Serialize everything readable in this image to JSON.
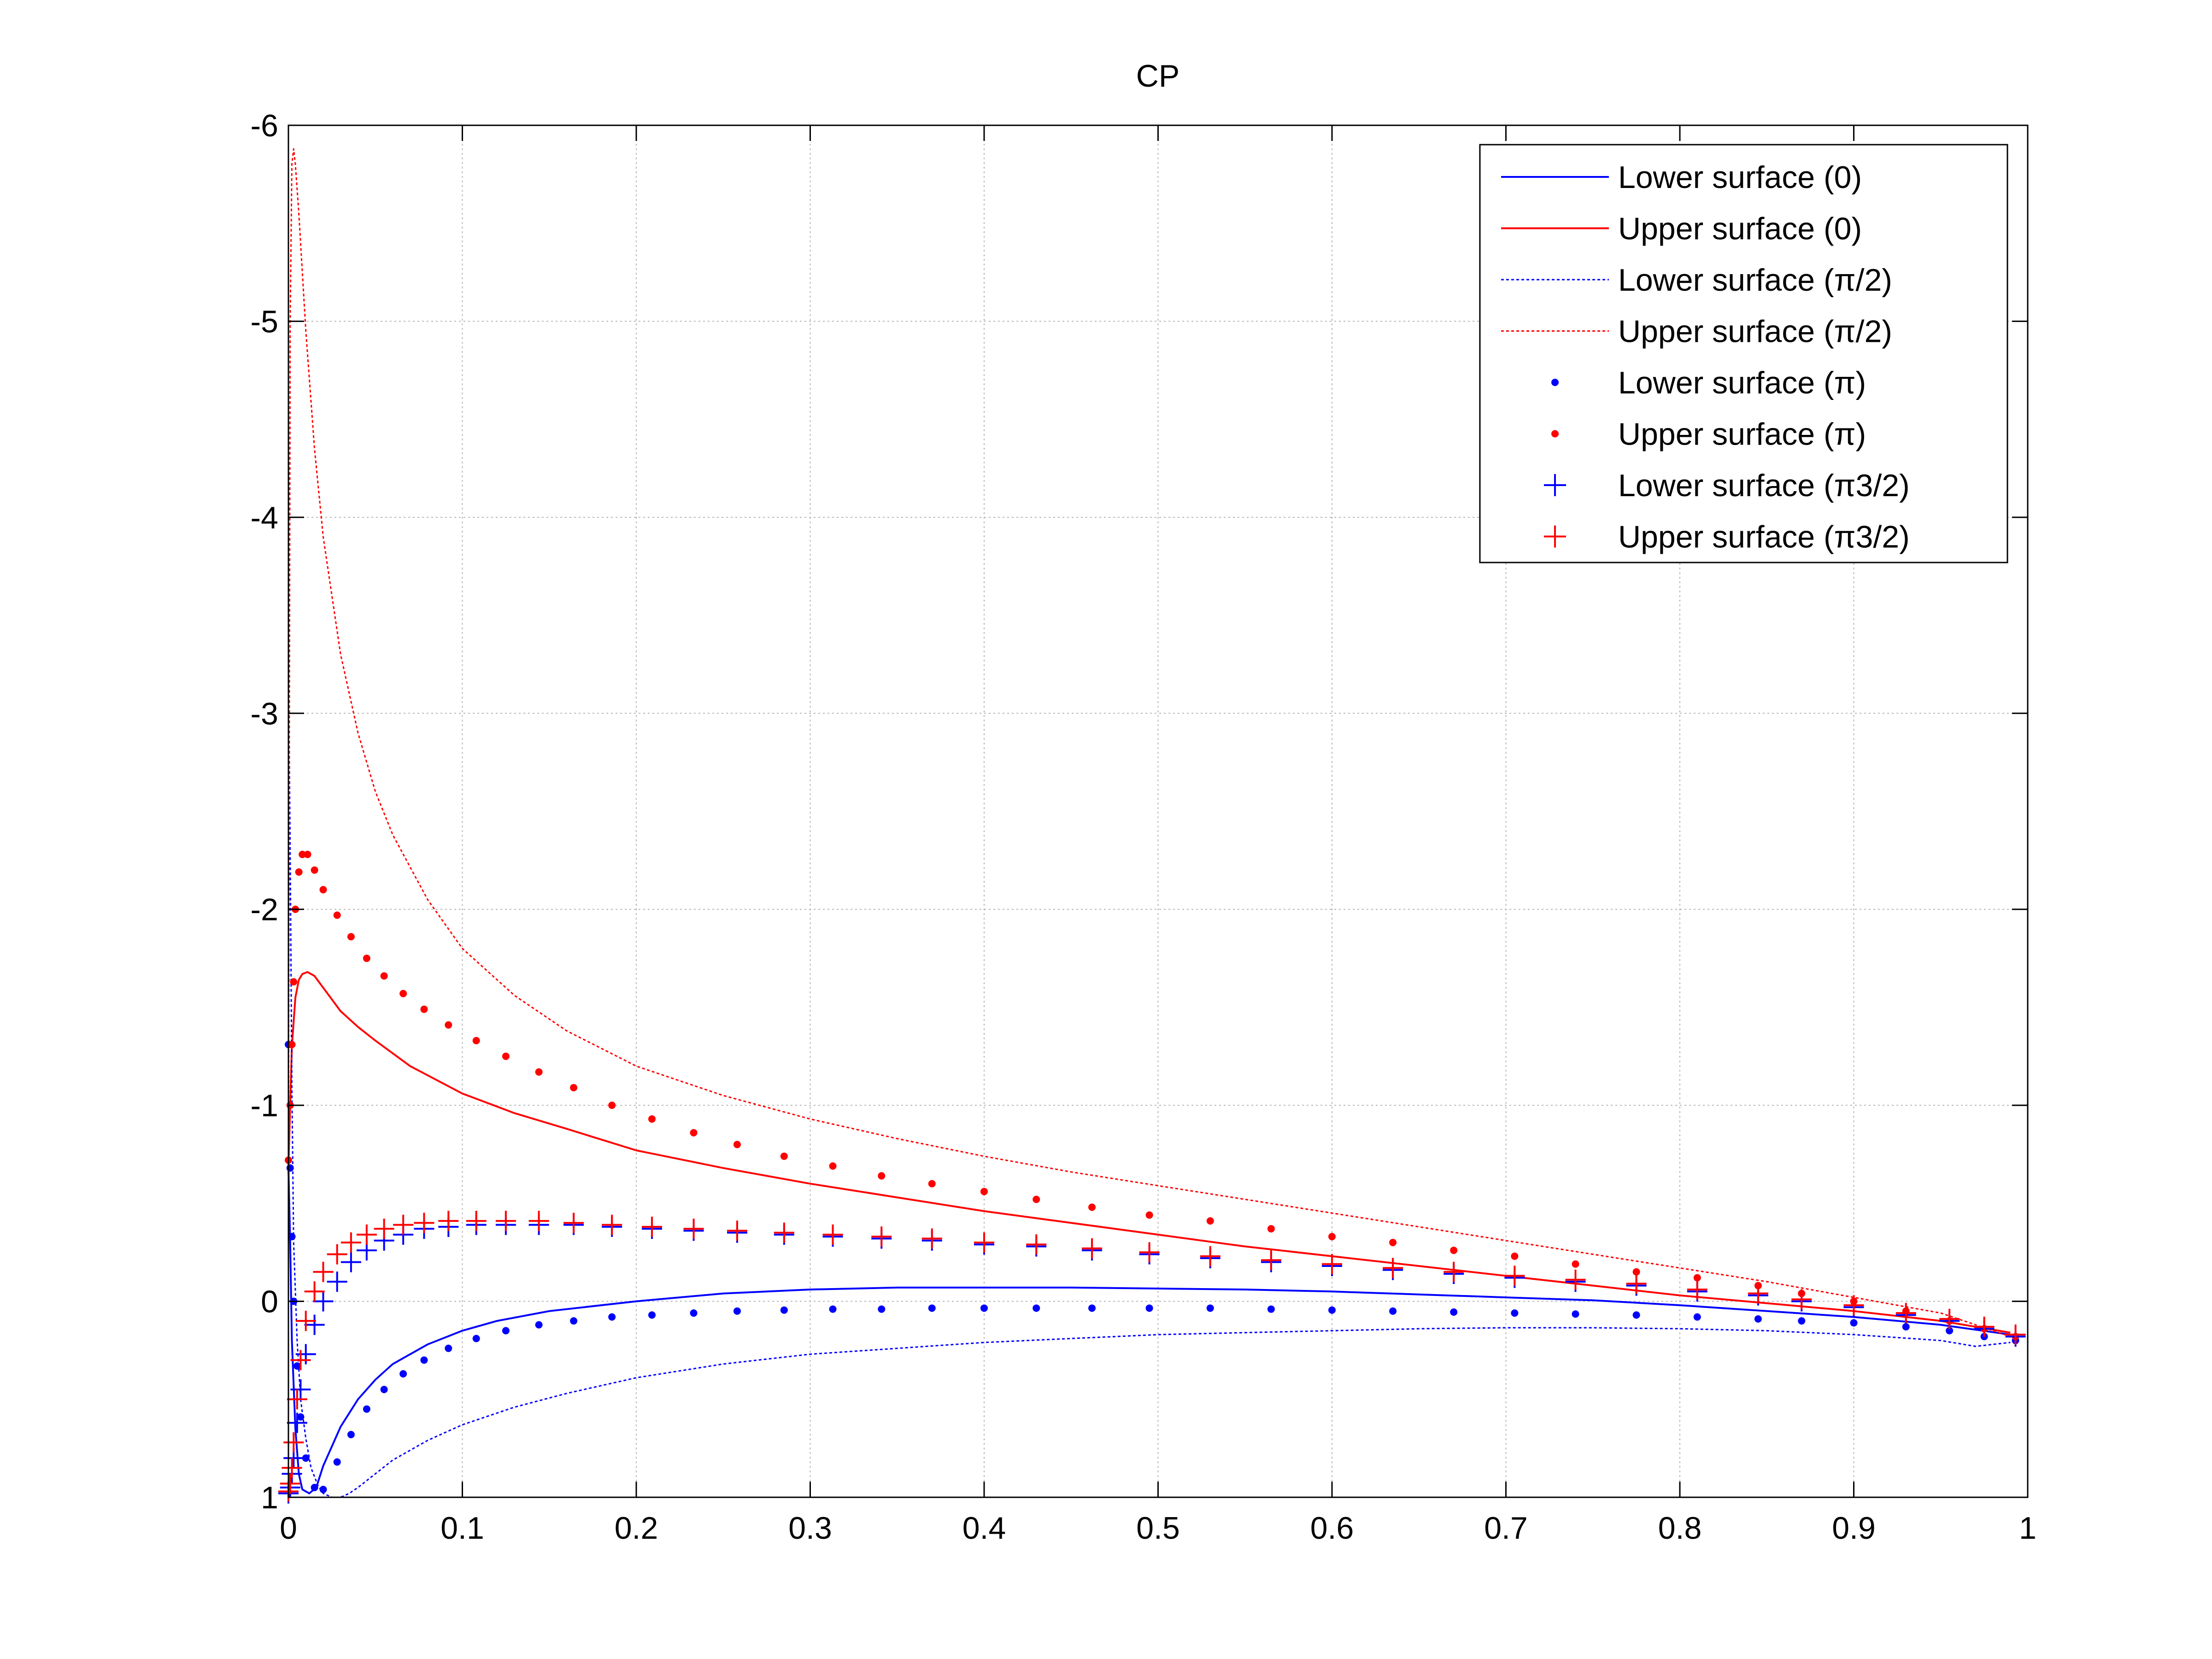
{
  "chart_data": {
    "type": "line",
    "title": "CP",
    "xlabel": "",
    "ylabel": "",
    "xlim": [
      0,
      1
    ],
    "ylim": [
      1,
      -6
    ],
    "y_reversed": true,
    "grid": true,
    "legend_position": "top-right",
    "xticks": [
      0,
      0.1,
      0.2,
      0.3,
      0.4,
      0.5,
      0.6,
      0.7,
      0.8,
      0.9,
      1
    ],
    "xtick_labels": [
      "0",
      "0.1",
      "0.2",
      "0.3",
      "0.4",
      "0.5",
      "0.6",
      "0.7",
      "0.8",
      "0.9",
      "1"
    ],
    "yticks": [
      1,
      0,
      -1,
      -2,
      -3,
      -4,
      -5,
      -6
    ],
    "ytick_labels": [
      "1",
      "0",
      "-1",
      "-2",
      "-3",
      "-4",
      "-5",
      "-6"
    ],
    "series": [
      {
        "name": "Lower surface (0)",
        "color": "#0000ff",
        "style": "solid",
        "marker": "none",
        "x": [
          0,
          0.001,
          0.002,
          0.004,
          0.006,
          0.008,
          0.012,
          0.016,
          0.02,
          0.03,
          0.04,
          0.05,
          0.06,
          0.08,
          0.1,
          0.12,
          0.15,
          0.2,
          0.25,
          0.3,
          0.35,
          0.4,
          0.45,
          0.5,
          0.55,
          0.6,
          0.65,
          0.7,
          0.75,
          0.8,
          0.85,
          0.9,
          0.95,
          0.99
        ],
        "y": [
          -0.68,
          -0.3,
          0.2,
          0.65,
          0.88,
          0.96,
          0.98,
          0.95,
          0.84,
          0.64,
          0.5,
          0.4,
          0.32,
          0.22,
          0.15,
          0.1,
          0.05,
          0.0,
          -0.04,
          -0.06,
          -0.07,
          -0.07,
          -0.07,
          -0.065,
          -0.06,
          -0.05,
          -0.035,
          -0.02,
          -0.005,
          0.02,
          0.05,
          0.08,
          0.12,
          0.17
        ]
      },
      {
        "name": "Upper surface (0)",
        "color": "#ff0000",
        "style": "solid",
        "marker": "none",
        "x": [
          0,
          0.001,
          0.002,
          0.004,
          0.006,
          0.008,
          0.011,
          0.015,
          0.02,
          0.03,
          0.04,
          0.05,
          0.07,
          0.1,
          0.13,
          0.16,
          0.2,
          0.25,
          0.3,
          0.35,
          0.4,
          0.45,
          0.5,
          0.55,
          0.6,
          0.65,
          0.7,
          0.75,
          0.8,
          0.85,
          0.9,
          0.95,
          0.99
        ],
        "y": [
          -0.68,
          -1.0,
          -1.3,
          -1.55,
          -1.64,
          -1.67,
          -1.68,
          -1.66,
          -1.6,
          -1.48,
          -1.4,
          -1.33,
          -1.2,
          -1.06,
          -0.96,
          -0.88,
          -0.77,
          -0.68,
          -0.6,
          -0.53,
          -0.46,
          -0.4,
          -0.34,
          -0.28,
          -0.23,
          -0.18,
          -0.13,
          -0.08,
          -0.03,
          0.01,
          0.05,
          0.1,
          0.16
        ]
      },
      {
        "name": "Lower surface (π/2)",
        "color": "#0000ff",
        "style": "dotted",
        "marker": "none",
        "x": [
          0,
          0.001,
          0.002,
          0.003,
          0.005,
          0.007,
          0.01,
          0.013,
          0.017,
          0.02,
          0.025,
          0.03,
          0.035,
          0.04,
          0.05,
          0.06,
          0.08,
          0.1,
          0.13,
          0.16,
          0.2,
          0.25,
          0.3,
          0.35,
          0.4,
          0.45,
          0.5,
          0.55,
          0.6,
          0.65,
          0.7,
          0.75,
          0.8,
          0.85,
          0.9,
          0.95,
          0.97,
          0.99
        ],
        "y": [
          -3.3,
          -2.3,
          -1.1,
          -0.3,
          0.2,
          0.5,
          0.7,
          0.85,
          0.94,
          0.98,
          1.0,
          1.0,
          0.98,
          0.95,
          0.88,
          0.81,
          0.71,
          0.63,
          0.54,
          0.47,
          0.39,
          0.32,
          0.27,
          0.24,
          0.21,
          0.19,
          0.17,
          0.16,
          0.15,
          0.14,
          0.135,
          0.135,
          0.14,
          0.15,
          0.17,
          0.2,
          0.23,
          0.21
        ]
      },
      {
        "name": "Upper surface (π/2)",
        "color": "#ff0000",
        "style": "dotted",
        "marker": "none",
        "x": [
          0,
          0.001,
          0.002,
          0.003,
          0.004,
          0.006,
          0.008,
          0.01,
          0.015,
          0.02,
          0.03,
          0.04,
          0.05,
          0.06,
          0.08,
          0.1,
          0.13,
          0.16,
          0.2,
          0.25,
          0.3,
          0.35,
          0.4,
          0.45,
          0.5,
          0.55,
          0.6,
          0.65,
          0.7,
          0.75,
          0.8,
          0.85,
          0.9,
          0.95,
          0.97,
          0.99
        ],
        "y": [
          -0.7,
          -5.0,
          -5.8,
          -5.88,
          -5.8,
          -5.55,
          -5.25,
          -4.95,
          -4.35,
          -3.9,
          -3.3,
          -2.9,
          -2.6,
          -2.38,
          -2.05,
          -1.8,
          -1.56,
          -1.38,
          -1.2,
          -1.05,
          -0.93,
          -0.83,
          -0.74,
          -0.66,
          -0.59,
          -0.52,
          -0.45,
          -0.38,
          -0.31,
          -0.24,
          -0.17,
          -0.1,
          -0.02,
          0.06,
          0.12,
          0.18
        ]
      },
      {
        "name": "Lower surface (π)",
        "color": "#0000ff",
        "style": "none",
        "marker": "dot",
        "x": [
          0,
          0.001,
          0.002,
          0.003,
          0.005,
          0.007,
          0.01,
          0.015,
          0.02,
          0.028,
          0.036,
          0.045,
          0.055,
          0.066,
          0.078,
          0.092,
          0.108,
          0.125,
          0.144,
          0.164,
          0.186,
          0.209,
          0.233,
          0.258,
          0.285,
          0.313,
          0.341,
          0.37,
          0.4,
          0.43,
          0.462,
          0.495,
          0.53,
          0.565,
          0.6,
          0.635,
          0.67,
          0.705,
          0.74,
          0.775,
          0.81,
          0.845,
          0.87,
          0.9,
          0.93,
          0.955,
          0.975,
          0.993
        ],
        "y": [
          -1.31,
          -0.68,
          -0.33,
          0.0,
          0.33,
          0.59,
          0.8,
          0.95,
          0.96,
          0.82,
          0.68,
          0.55,
          0.45,
          0.37,
          0.3,
          0.24,
          0.19,
          0.15,
          0.12,
          0.1,
          0.08,
          0.07,
          0.06,
          0.05,
          0.045,
          0.04,
          0.04,
          0.035,
          0.035,
          0.035,
          0.035,
          0.035,
          0.035,
          0.04,
          0.045,
          0.05,
          0.055,
          0.06,
          0.065,
          0.07,
          0.08,
          0.09,
          0.1,
          0.11,
          0.13,
          0.15,
          0.18,
          0.2
        ]
      },
      {
        "name": "Upper surface (π)",
        "color": "#ff0000",
        "style": "none",
        "marker": "dot",
        "x": [
          0,
          0.001,
          0.002,
          0.003,
          0.004,
          0.006,
          0.008,
          0.011,
          0.015,
          0.02,
          0.028,
          0.036,
          0.045,
          0.055,
          0.066,
          0.078,
          0.092,
          0.108,
          0.125,
          0.144,
          0.164,
          0.186,
          0.209,
          0.233,
          0.258,
          0.285,
          0.313,
          0.341,
          0.37,
          0.4,
          0.43,
          0.462,
          0.495,
          0.53,
          0.565,
          0.6,
          0.635,
          0.67,
          0.705,
          0.74,
          0.775,
          0.81,
          0.845,
          0.87,
          0.9,
          0.93,
          0.955,
          0.975,
          0.993
        ],
        "y": [
          -0.72,
          -1.0,
          -1.31,
          -1.63,
          -2.0,
          -2.19,
          -2.28,
          -2.28,
          -2.2,
          -2.1,
          -1.97,
          -1.86,
          -1.75,
          -1.66,
          -1.57,
          -1.49,
          -1.41,
          -1.33,
          -1.25,
          -1.17,
          -1.09,
          -1.0,
          -0.93,
          -0.86,
          -0.8,
          -0.74,
          -0.69,
          -0.64,
          -0.6,
          -0.56,
          -0.52,
          -0.48,
          -0.44,
          -0.41,
          -0.37,
          -0.33,
          -0.3,
          -0.26,
          -0.23,
          -0.19,
          -0.15,
          -0.12,
          -0.08,
          -0.04,
          0.0,
          0.05,
          0.1,
          0.14,
          0.18
        ]
      },
      {
        "name": "Lower surface (π3/2)",
        "color": "#0000ff",
        "style": "none",
        "marker": "plus",
        "x": [
          0,
          0.001,
          0.002,
          0.003,
          0.005,
          0.007,
          0.01,
          0.015,
          0.02,
          0.028,
          0.036,
          0.045,
          0.055,
          0.066,
          0.078,
          0.092,
          0.108,
          0.125,
          0.144,
          0.164,
          0.186,
          0.209,
          0.233,
          0.258,
          0.285,
          0.313,
          0.341,
          0.37,
          0.4,
          0.43,
          0.462,
          0.495,
          0.53,
          0.565,
          0.6,
          0.635,
          0.67,
          0.705,
          0.74,
          0.775,
          0.81,
          0.845,
          0.87,
          0.9,
          0.93,
          0.955,
          0.975,
          0.993
        ],
        "y": [
          0.98,
          0.95,
          0.88,
          0.8,
          0.62,
          0.45,
          0.27,
          0.12,
          0.0,
          -0.1,
          -0.2,
          -0.26,
          -0.31,
          -0.34,
          -0.37,
          -0.38,
          -0.39,
          -0.39,
          -0.39,
          -0.39,
          -0.38,
          -0.37,
          -0.36,
          -0.35,
          -0.34,
          -0.33,
          -0.32,
          -0.31,
          -0.29,
          -0.28,
          -0.26,
          -0.24,
          -0.22,
          -0.2,
          -0.18,
          -0.16,
          -0.14,
          -0.12,
          -0.1,
          -0.08,
          -0.05,
          -0.03,
          0.0,
          0.03,
          0.07,
          0.1,
          0.14,
          0.18
        ]
      },
      {
        "name": "Upper surface (π3/2)",
        "color": "#ff0000",
        "style": "none",
        "marker": "plus",
        "x": [
          0,
          0.001,
          0.002,
          0.003,
          0.005,
          0.007,
          0.01,
          0.015,
          0.02,
          0.028,
          0.036,
          0.045,
          0.055,
          0.066,
          0.078,
          0.092,
          0.108,
          0.125,
          0.144,
          0.164,
          0.186,
          0.209,
          0.233,
          0.258,
          0.285,
          0.313,
          0.341,
          0.37,
          0.4,
          0.43,
          0.462,
          0.495,
          0.53,
          0.565,
          0.6,
          0.635,
          0.67,
          0.705,
          0.74,
          0.775,
          0.81,
          0.845,
          0.87,
          0.9,
          0.93,
          0.955,
          0.975,
          0.993
        ],
        "y": [
          0.97,
          0.93,
          0.85,
          0.72,
          0.5,
          0.3,
          0.1,
          -0.05,
          -0.15,
          -0.24,
          -0.3,
          -0.34,
          -0.37,
          -0.39,
          -0.4,
          -0.41,
          -0.41,
          -0.41,
          -0.41,
          -0.4,
          -0.39,
          -0.38,
          -0.37,
          -0.36,
          -0.35,
          -0.34,
          -0.33,
          -0.32,
          -0.3,
          -0.29,
          -0.27,
          -0.25,
          -0.23,
          -0.21,
          -0.19,
          -0.17,
          -0.15,
          -0.13,
          -0.11,
          -0.09,
          -0.06,
          -0.04,
          -0.01,
          0.02,
          0.06,
          0.09,
          0.13,
          0.17
        ]
      }
    ]
  }
}
